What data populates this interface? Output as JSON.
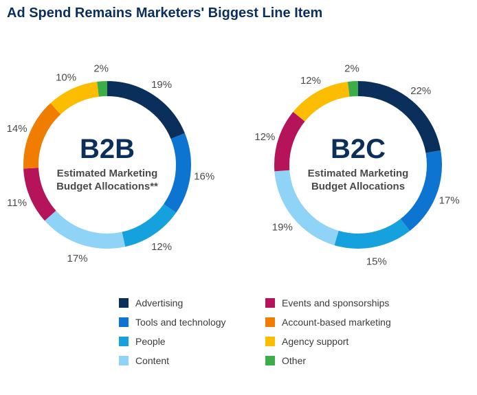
{
  "title": "Ad Spend Remains Marketers' Biggest Line Item",
  "categories": [
    "Advertising",
    "Tools and technology",
    "People",
    "Content",
    "Events and sponsorships",
    "Account-based marketing",
    "Agency support",
    "Other"
  ],
  "colors": [
    "#0b2f5b",
    "#0d74d1",
    "#15a1dd",
    "#8fd3f7",
    "#b5135a",
    "#f07d00",
    "#fcbc00",
    "#3cad49"
  ],
  "chart_data": [
    {
      "type": "pie",
      "name": "B2B",
      "subtitle_lines": [
        "Estimated Marketing",
        "Budget Allocations**"
      ],
      "categories": [
        "Advertising",
        "Tools and technology",
        "People",
        "Content",
        "Events and sponsorships",
        "Account-based marketing",
        "Agency support",
        "Other"
      ],
      "values": [
        19,
        16,
        12,
        17,
        11,
        14,
        10,
        2
      ],
      "labels": [
        "19%",
        "16%",
        "12%",
        "17%",
        "11%",
        "14%",
        "10%",
        "2%"
      ]
    },
    {
      "type": "pie",
      "name": "B2C",
      "subtitle_lines": [
        "Estimated Marketing",
        "Budget Allocations"
      ],
      "categories": [
        "Advertising",
        "Tools and technology",
        "People",
        "Content",
        "Events and sponsorships",
        "Agency support",
        "Other"
      ],
      "values": [
        22,
        17,
        15,
        19,
        12,
        12,
        2
      ],
      "labels": [
        "22%",
        "17%",
        "15%",
        "19%",
        "12%",
        "12%",
        "2%"
      ]
    }
  ]
}
